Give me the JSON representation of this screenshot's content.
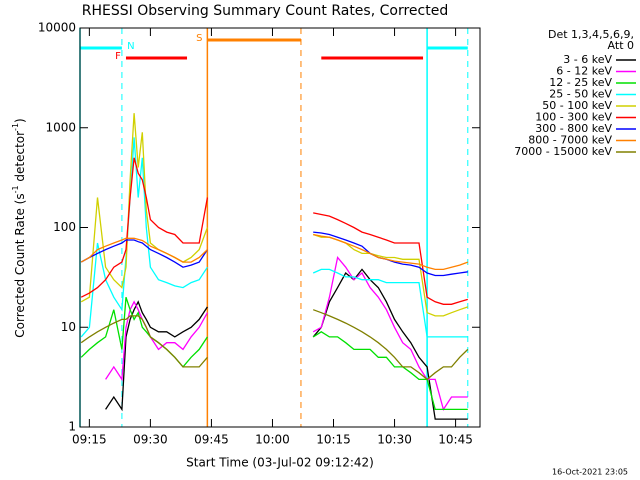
{
  "chart_data": {
    "type": "line",
    "title": "RHESSI Observing Summary Count Rates, Corrected",
    "xlabel": "Start Time (03-Jul-02 09:12:42)",
    "ylabel": [
      "Corrected Count Rate (s",
      "-1",
      " detector",
      "-1",
      ")"
    ],
    "legend_title": [
      "Det 1,3,4,5,6,9,",
      "Att 0"
    ],
    "footer": "16-Oct-2021 23:05",
    "log_y": true,
    "xlim": [
      "09:12:42",
      "10:51"
    ],
    "xticks": [
      "09:15",
      "09:30",
      "09:45",
      "10:00",
      "10:15",
      "10:30",
      "10:45"
    ],
    "ylim": [
      1,
      10000
    ],
    "yticks": [
      1,
      10,
      100,
      1000,
      10000
    ],
    "flags": [
      {
        "label": "S",
        "color": "#ff8000",
        "segments": [
          [
            "09:44",
            "10:07"
          ]
        ]
      },
      {
        "label": "N",
        "color": "#00ffff",
        "segments": [
          [
            "09:12:42",
            "09:23"
          ],
          [
            "10:38",
            "10:48"
          ]
        ]
      },
      {
        "label": "F",
        "color": "#ff0000",
        "segments": [
          [
            "09:24",
            "09:39"
          ],
          [
            "10:12",
            "10:37"
          ]
        ]
      }
    ],
    "x": [
      "09:13",
      "09:15",
      "09:17",
      "09:19",
      "09:21",
      "09:23",
      "09:24",
      "09:25",
      "09:26",
      "09:27",
      "09:28",
      "09:29",
      "09:30",
      "09:32",
      "09:34",
      "09:36",
      "09:38",
      "09:40",
      "09:42",
      "09:44",
      "09:55",
      "10:10",
      "10:12",
      "10:14",
      "10:16",
      "10:18",
      "10:20",
      "10:22",
      "10:24",
      "10:26",
      "10:28",
      "10:30",
      "10:32",
      "10:34",
      "10:36",
      "10:38",
      "10:40",
      "10:42",
      "10:44",
      "10:46",
      "10:48"
    ],
    "series": [
      {
        "name": "3 - 6 keV",
        "color": "#000000",
        "values": [
          null,
          null,
          null,
          1.5,
          2,
          1.5,
          8,
          12,
          15,
          18,
          14,
          12,
          10,
          9,
          9,
          8,
          9,
          10,
          12,
          16,
          null,
          8,
          10,
          18,
          25,
          35,
          30,
          38,
          30,
          25,
          18,
          12,
          9,
          7,
          5,
          4,
          1.2,
          1.2,
          1.2,
          1.2,
          1.2
        ]
      },
      {
        "name": "6 - 12 keV",
        "color": "#ff00ff",
        "values": [
          null,
          null,
          null,
          3,
          4,
          3,
          10,
          15,
          18,
          15,
          12,
          10,
          8,
          6,
          7,
          7,
          6,
          8,
          10,
          14,
          null,
          9,
          10,
          20,
          50,
          40,
          30,
          35,
          25,
          20,
          15,
          10,
          7,
          6,
          4,
          3,
          3,
          1.5,
          2,
          2,
          2
        ]
      },
      {
        "name": "12 - 25 keV",
        "color": "#00e000",
        "values": [
          5,
          6,
          7,
          8,
          15,
          6,
          20,
          15,
          12,
          14,
          10,
          9,
          8,
          7,
          6,
          5,
          4,
          5,
          6,
          8,
          null,
          8,
          9,
          8,
          8,
          7,
          6,
          6,
          6,
          5,
          5,
          4,
          4,
          3.5,
          3,
          3,
          1.5,
          1.5,
          1.5,
          1.5,
          1.5
        ]
      },
      {
        "name": "25 - 50 keV",
        "color": "#00ffff",
        "values": [
          8,
          10,
          70,
          30,
          20,
          15,
          50,
          200,
          800,
          200,
          500,
          100,
          40,
          30,
          28,
          26,
          25,
          28,
          30,
          40,
          null,
          35,
          38,
          38,
          35,
          32,
          32,
          30,
          30,
          30,
          28,
          28,
          28,
          28,
          28,
          8,
          8,
          8,
          8,
          8,
          8
        ]
      },
      {
        "name": "50 - 100 keV",
        "color": "#d0d000",
        "values": [
          18,
          20,
          200,
          40,
          30,
          25,
          40,
          300,
          1400,
          400,
          900,
          150,
          70,
          60,
          55,
          50,
          45,
          50,
          60,
          100,
          null,
          85,
          80,
          80,
          75,
          70,
          60,
          55,
          55,
          52,
          50,
          50,
          48,
          48,
          48,
          14,
          13,
          13,
          14,
          15,
          16
        ]
      },
      {
        "name": "100 - 300 keV",
        "color": "#ff0000",
        "values": [
          20,
          22,
          25,
          30,
          40,
          45,
          60,
          200,
          500,
          350,
          300,
          200,
          120,
          100,
          90,
          85,
          70,
          70,
          70,
          200,
          null,
          140,
          135,
          130,
          120,
          110,
          100,
          90,
          85,
          80,
          75,
          70,
          70,
          70,
          70,
          20,
          18,
          17,
          17,
          18,
          19
        ]
      },
      {
        "name": "300 - 800 keV",
        "color": "#0000ff",
        "values": [
          45,
          50,
          55,
          60,
          65,
          70,
          75,
          75,
          75,
          72,
          70,
          65,
          60,
          55,
          50,
          45,
          40,
          42,
          45,
          60,
          null,
          90,
          88,
          85,
          80,
          75,
          70,
          65,
          55,
          50,
          48,
          45,
          43,
          42,
          40,
          35,
          33,
          33,
          34,
          35,
          36
        ]
      },
      {
        "name": "800 - 7000 keV",
        "color": "#ff8000",
        "values": [
          45,
          50,
          60,
          65,
          70,
          75,
          78,
          78,
          78,
          76,
          74,
          70,
          65,
          60,
          55,
          50,
          45,
          45,
          50,
          60,
          null,
          85,
          82,
          80,
          75,
          70,
          65,
          60,
          55,
          50,
          48,
          46,
          45,
          44,
          43,
          40,
          38,
          38,
          40,
          42,
          45
        ]
      },
      {
        "name": "7000 - 15000 keV",
        "color": "#808000",
        "values": [
          7,
          8,
          9,
          10,
          11,
          12,
          12,
          13,
          13,
          13,
          12,
          10,
          8,
          7,
          6,
          5,
          4,
          4,
          4,
          5,
          null,
          15,
          14,
          13,
          12,
          11,
          10,
          9,
          8,
          7,
          6,
          5,
          4,
          4,
          3.5,
          3,
          3.5,
          4,
          4,
          5,
          6
        ]
      }
    ]
  }
}
